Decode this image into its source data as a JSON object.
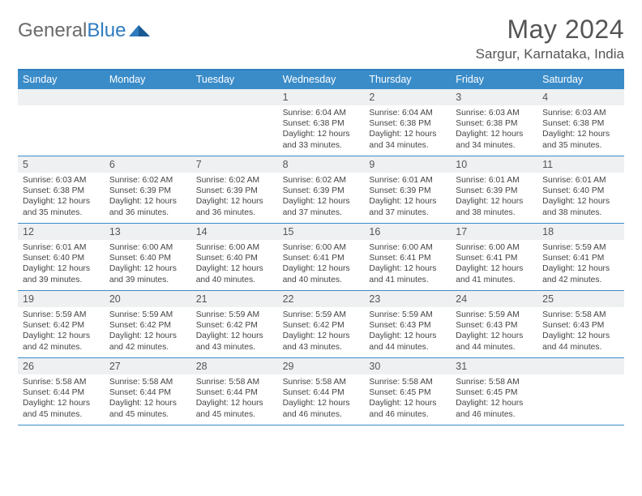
{
  "logo": {
    "text_general": "General",
    "text_blue": "Blue"
  },
  "header": {
    "month_title": "May 2024",
    "location": "Sargur, Karnataka, India"
  },
  "colors": {
    "accent": "#3a8cc9",
    "border_top": "#2f7bbf",
    "day_num_bg": "#eef0f2",
    "text_main": "#444444",
    "text_header": "#555555"
  },
  "day_names": [
    "Sunday",
    "Monday",
    "Tuesday",
    "Wednesday",
    "Thursday",
    "Friday",
    "Saturday"
  ],
  "weeks": [
    [
      {
        "n": "",
        "rise": "",
        "set": "",
        "day": ""
      },
      {
        "n": "",
        "rise": "",
        "set": "",
        "day": ""
      },
      {
        "n": "",
        "rise": "",
        "set": "",
        "day": ""
      },
      {
        "n": "1",
        "rise": "Sunrise: 6:04 AM",
        "set": "Sunset: 6:38 PM",
        "day": "Daylight: 12 hours and 33 minutes."
      },
      {
        "n": "2",
        "rise": "Sunrise: 6:04 AM",
        "set": "Sunset: 6:38 PM",
        "day": "Daylight: 12 hours and 34 minutes."
      },
      {
        "n": "3",
        "rise": "Sunrise: 6:03 AM",
        "set": "Sunset: 6:38 PM",
        "day": "Daylight: 12 hours and 34 minutes."
      },
      {
        "n": "4",
        "rise": "Sunrise: 6:03 AM",
        "set": "Sunset: 6:38 PM",
        "day": "Daylight: 12 hours and 35 minutes."
      }
    ],
    [
      {
        "n": "5",
        "rise": "Sunrise: 6:03 AM",
        "set": "Sunset: 6:38 PM",
        "day": "Daylight: 12 hours and 35 minutes."
      },
      {
        "n": "6",
        "rise": "Sunrise: 6:02 AM",
        "set": "Sunset: 6:39 PM",
        "day": "Daylight: 12 hours and 36 minutes."
      },
      {
        "n": "7",
        "rise": "Sunrise: 6:02 AM",
        "set": "Sunset: 6:39 PM",
        "day": "Daylight: 12 hours and 36 minutes."
      },
      {
        "n": "8",
        "rise": "Sunrise: 6:02 AM",
        "set": "Sunset: 6:39 PM",
        "day": "Daylight: 12 hours and 37 minutes."
      },
      {
        "n": "9",
        "rise": "Sunrise: 6:01 AM",
        "set": "Sunset: 6:39 PM",
        "day": "Daylight: 12 hours and 37 minutes."
      },
      {
        "n": "10",
        "rise": "Sunrise: 6:01 AM",
        "set": "Sunset: 6:39 PM",
        "day": "Daylight: 12 hours and 38 minutes."
      },
      {
        "n": "11",
        "rise": "Sunrise: 6:01 AM",
        "set": "Sunset: 6:40 PM",
        "day": "Daylight: 12 hours and 38 minutes."
      }
    ],
    [
      {
        "n": "12",
        "rise": "Sunrise: 6:01 AM",
        "set": "Sunset: 6:40 PM",
        "day": "Daylight: 12 hours and 39 minutes."
      },
      {
        "n": "13",
        "rise": "Sunrise: 6:00 AM",
        "set": "Sunset: 6:40 PM",
        "day": "Daylight: 12 hours and 39 minutes."
      },
      {
        "n": "14",
        "rise": "Sunrise: 6:00 AM",
        "set": "Sunset: 6:40 PM",
        "day": "Daylight: 12 hours and 40 minutes."
      },
      {
        "n": "15",
        "rise": "Sunrise: 6:00 AM",
        "set": "Sunset: 6:41 PM",
        "day": "Daylight: 12 hours and 40 minutes."
      },
      {
        "n": "16",
        "rise": "Sunrise: 6:00 AM",
        "set": "Sunset: 6:41 PM",
        "day": "Daylight: 12 hours and 41 minutes."
      },
      {
        "n": "17",
        "rise": "Sunrise: 6:00 AM",
        "set": "Sunset: 6:41 PM",
        "day": "Daylight: 12 hours and 41 minutes."
      },
      {
        "n": "18",
        "rise": "Sunrise: 5:59 AM",
        "set": "Sunset: 6:41 PM",
        "day": "Daylight: 12 hours and 42 minutes."
      }
    ],
    [
      {
        "n": "19",
        "rise": "Sunrise: 5:59 AM",
        "set": "Sunset: 6:42 PM",
        "day": "Daylight: 12 hours and 42 minutes."
      },
      {
        "n": "20",
        "rise": "Sunrise: 5:59 AM",
        "set": "Sunset: 6:42 PM",
        "day": "Daylight: 12 hours and 42 minutes."
      },
      {
        "n": "21",
        "rise": "Sunrise: 5:59 AM",
        "set": "Sunset: 6:42 PM",
        "day": "Daylight: 12 hours and 43 minutes."
      },
      {
        "n": "22",
        "rise": "Sunrise: 5:59 AM",
        "set": "Sunset: 6:42 PM",
        "day": "Daylight: 12 hours and 43 minutes."
      },
      {
        "n": "23",
        "rise": "Sunrise: 5:59 AM",
        "set": "Sunset: 6:43 PM",
        "day": "Daylight: 12 hours and 44 minutes."
      },
      {
        "n": "24",
        "rise": "Sunrise: 5:59 AM",
        "set": "Sunset: 6:43 PM",
        "day": "Daylight: 12 hours and 44 minutes."
      },
      {
        "n": "25",
        "rise": "Sunrise: 5:58 AM",
        "set": "Sunset: 6:43 PM",
        "day": "Daylight: 12 hours and 44 minutes."
      }
    ],
    [
      {
        "n": "26",
        "rise": "Sunrise: 5:58 AM",
        "set": "Sunset: 6:44 PM",
        "day": "Daylight: 12 hours and 45 minutes."
      },
      {
        "n": "27",
        "rise": "Sunrise: 5:58 AM",
        "set": "Sunset: 6:44 PM",
        "day": "Daylight: 12 hours and 45 minutes."
      },
      {
        "n": "28",
        "rise": "Sunrise: 5:58 AM",
        "set": "Sunset: 6:44 PM",
        "day": "Daylight: 12 hours and 45 minutes."
      },
      {
        "n": "29",
        "rise": "Sunrise: 5:58 AM",
        "set": "Sunset: 6:44 PM",
        "day": "Daylight: 12 hours and 46 minutes."
      },
      {
        "n": "30",
        "rise": "Sunrise: 5:58 AM",
        "set": "Sunset: 6:45 PM",
        "day": "Daylight: 12 hours and 46 minutes."
      },
      {
        "n": "31",
        "rise": "Sunrise: 5:58 AM",
        "set": "Sunset: 6:45 PM",
        "day": "Daylight: 12 hours and 46 minutes."
      },
      {
        "n": "",
        "rise": "",
        "set": "",
        "day": ""
      }
    ]
  ]
}
